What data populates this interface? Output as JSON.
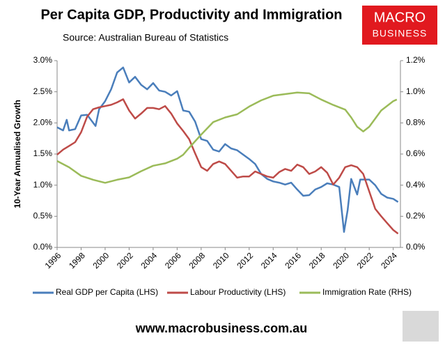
{
  "chart_data": {
    "type": "line",
    "title": "Per Capita GDP, Productivity and Immigration",
    "subtitle": "Source: Australian Bureau of Statistics",
    "logo": [
      "MACRO",
      "BUSINESS"
    ],
    "footer": "www.macrobusiness.com.au",
    "y_label": "10-Year Annualised Growth",
    "grid": false,
    "xlim": [
      1996,
      2024.6
    ],
    "xticks": [
      1996,
      1998,
      2000,
      2002,
      2004,
      2006,
      2008,
      2010,
      2012,
      2014,
      2016,
      2018,
      2020,
      2022,
      2024
    ],
    "ylim": [
      0,
      3
    ],
    "yticks": [
      {
        "value": 0,
        "label": "0.0%"
      },
      {
        "value": 0.5,
        "label": "0.5%"
      },
      {
        "value": 1,
        "label": "1.0%"
      },
      {
        "value": 1.5,
        "label": "1.5%"
      },
      {
        "value": 2,
        "label": "2.0%"
      },
      {
        "value": 2.5,
        "label": "2.5%"
      },
      {
        "value": 3,
        "label": "3.0%"
      }
    ],
    "y2lim": [
      0,
      1.2
    ],
    "y2ticks": [
      {
        "value": 0,
        "label": "0.0%"
      },
      {
        "value": 0.2,
        "label": "0.2%"
      },
      {
        "value": 0.4,
        "label": "0.4%"
      },
      {
        "value": 0.6,
        "label": "0.6%"
      },
      {
        "value": 0.8,
        "label": "0.8%"
      },
      {
        "value": 1,
        "label": "1.0%"
      },
      {
        "value": 1.2,
        "label": "1.2%"
      }
    ],
    "series": [
      {
        "name": "Real GDP per Capita (LHS)",
        "color": "#4a7ebb",
        "x": [
          1996,
          1996.5,
          1996.8,
          1997,
          1997.5,
          1998,
          1998.5,
          1999.2,
          1999.5,
          2000,
          2000.5,
          2001,
          2001.5,
          2002,
          2002.5,
          2003,
          2003.5,
          2004,
          2004.5,
          2005,
          2005.5,
          2006,
          2006.5,
          2007,
          2007.5,
          2008,
          2008.5,
          2009,
          2009.5,
          2010,
          2010.5,
          2011,
          2011.5,
          2012,
          2012.5,
          2013,
          2013.5,
          2014,
          2014.5,
          2015,
          2015.5,
          2016,
          2016.5,
          2017,
          2017.5,
          2018,
          2018.5,
          2019,
          2019.5,
          2019.9,
          2020.2,
          2020.5,
          2021,
          2021.25,
          2021.5,
          2022,
          2022.5,
          2023,
          2023.5,
          2024,
          2024.4
        ],
        "values": [
          1.93,
          1.88,
          2.05,
          1.88,
          1.9,
          2.12,
          2.13,
          1.95,
          2.22,
          2.35,
          2.54,
          2.81,
          2.89,
          2.65,
          2.74,
          2.61,
          2.54,
          2.64,
          2.52,
          2.5,
          2.44,
          2.51,
          2.2,
          2.18,
          2.02,
          1.74,
          1.71,
          1.57,
          1.54,
          1.66,
          1.59,
          1.56,
          1.49,
          1.42,
          1.34,
          1.18,
          1.1,
          1.06,
          1.04,
          1.01,
          1.04,
          0.93,
          0.83,
          0.84,
          0.93,
          0.97,
          1.03,
          1.01,
          0.97,
          0.25,
          0.6,
          1.1,
          0.85,
          1.09,
          1.09,
          1.09,
          1.0,
          0.86,
          0.8,
          0.78,
          0.73
        ]
      },
      {
        "name": "Labour Productivity (LHS)",
        "color": "#be4b48",
        "x": [
          1996,
          1996.5,
          1997,
          1997.5,
          1998,
          1998.5,
          1999,
          1999.5,
          2000,
          2000.5,
          2001,
          2001.5,
          2002,
          2002.5,
          2003,
          2003.5,
          2004,
          2004.5,
          2005,
          2005.5,
          2006,
          2006.5,
          2007,
          2007.5,
          2008,
          2008.5,
          2009,
          2009.5,
          2010,
          2010.5,
          2011,
          2011.5,
          2012,
          2012.5,
          2013,
          2013.5,
          2014,
          2014.5,
          2015,
          2015.5,
          2016,
          2016.5,
          2017,
          2017.5,
          2018,
          2018.5,
          2019,
          2019.5,
          2020,
          2020.5,
          2021,
          2021.5,
          2022,
          2022.5,
          2023,
          2023.5,
          2024,
          2024.4
        ],
        "values": [
          1.49,
          1.57,
          1.63,
          1.69,
          1.85,
          2.1,
          2.22,
          2.25,
          2.27,
          2.29,
          2.33,
          2.38,
          2.2,
          2.07,
          2.15,
          2.24,
          2.24,
          2.22,
          2.27,
          2.15,
          1.99,
          1.87,
          1.74,
          1.51,
          1.29,
          1.23,
          1.34,
          1.38,
          1.34,
          1.23,
          1.12,
          1.14,
          1.14,
          1.22,
          1.18,
          1.14,
          1.12,
          1.21,
          1.26,
          1.23,
          1.33,
          1.29,
          1.18,
          1.22,
          1.29,
          1.2,
          1.01,
          1.12,
          1.29,
          1.32,
          1.29,
          1.18,
          0.9,
          0.62,
          0.5,
          0.39,
          0.28,
          0.22
        ]
      },
      {
        "name": "Immigration Rate (RHS)",
        "color": "#9bbb59",
        "axis": "y2",
        "x": [
          1996,
          1997,
          1998,
          1999,
          2000,
          2001,
          2002,
          2003,
          2004,
          2005,
          2006,
          2006.5,
          2007,
          2008,
          2009,
          2010,
          2011,
          2012,
          2013,
          2014,
          2015,
          2016,
          2017,
          2018,
          2019,
          2020,
          2020.5,
          2021,
          2021.5,
          2022,
          2023,
          2024,
          2024.3
        ],
        "values": [
          0.555,
          0.515,
          0.46,
          0.435,
          0.415,
          0.435,
          0.45,
          0.49,
          0.525,
          0.54,
          0.57,
          0.595,
          0.64,
          0.725,
          0.805,
          0.835,
          0.855,
          0.905,
          0.945,
          0.975,
          0.985,
          0.995,
          0.99,
          0.95,
          0.915,
          0.885,
          0.835,
          0.775,
          0.745,
          0.775,
          0.88,
          0.94,
          0.95
        ]
      }
    ]
  }
}
